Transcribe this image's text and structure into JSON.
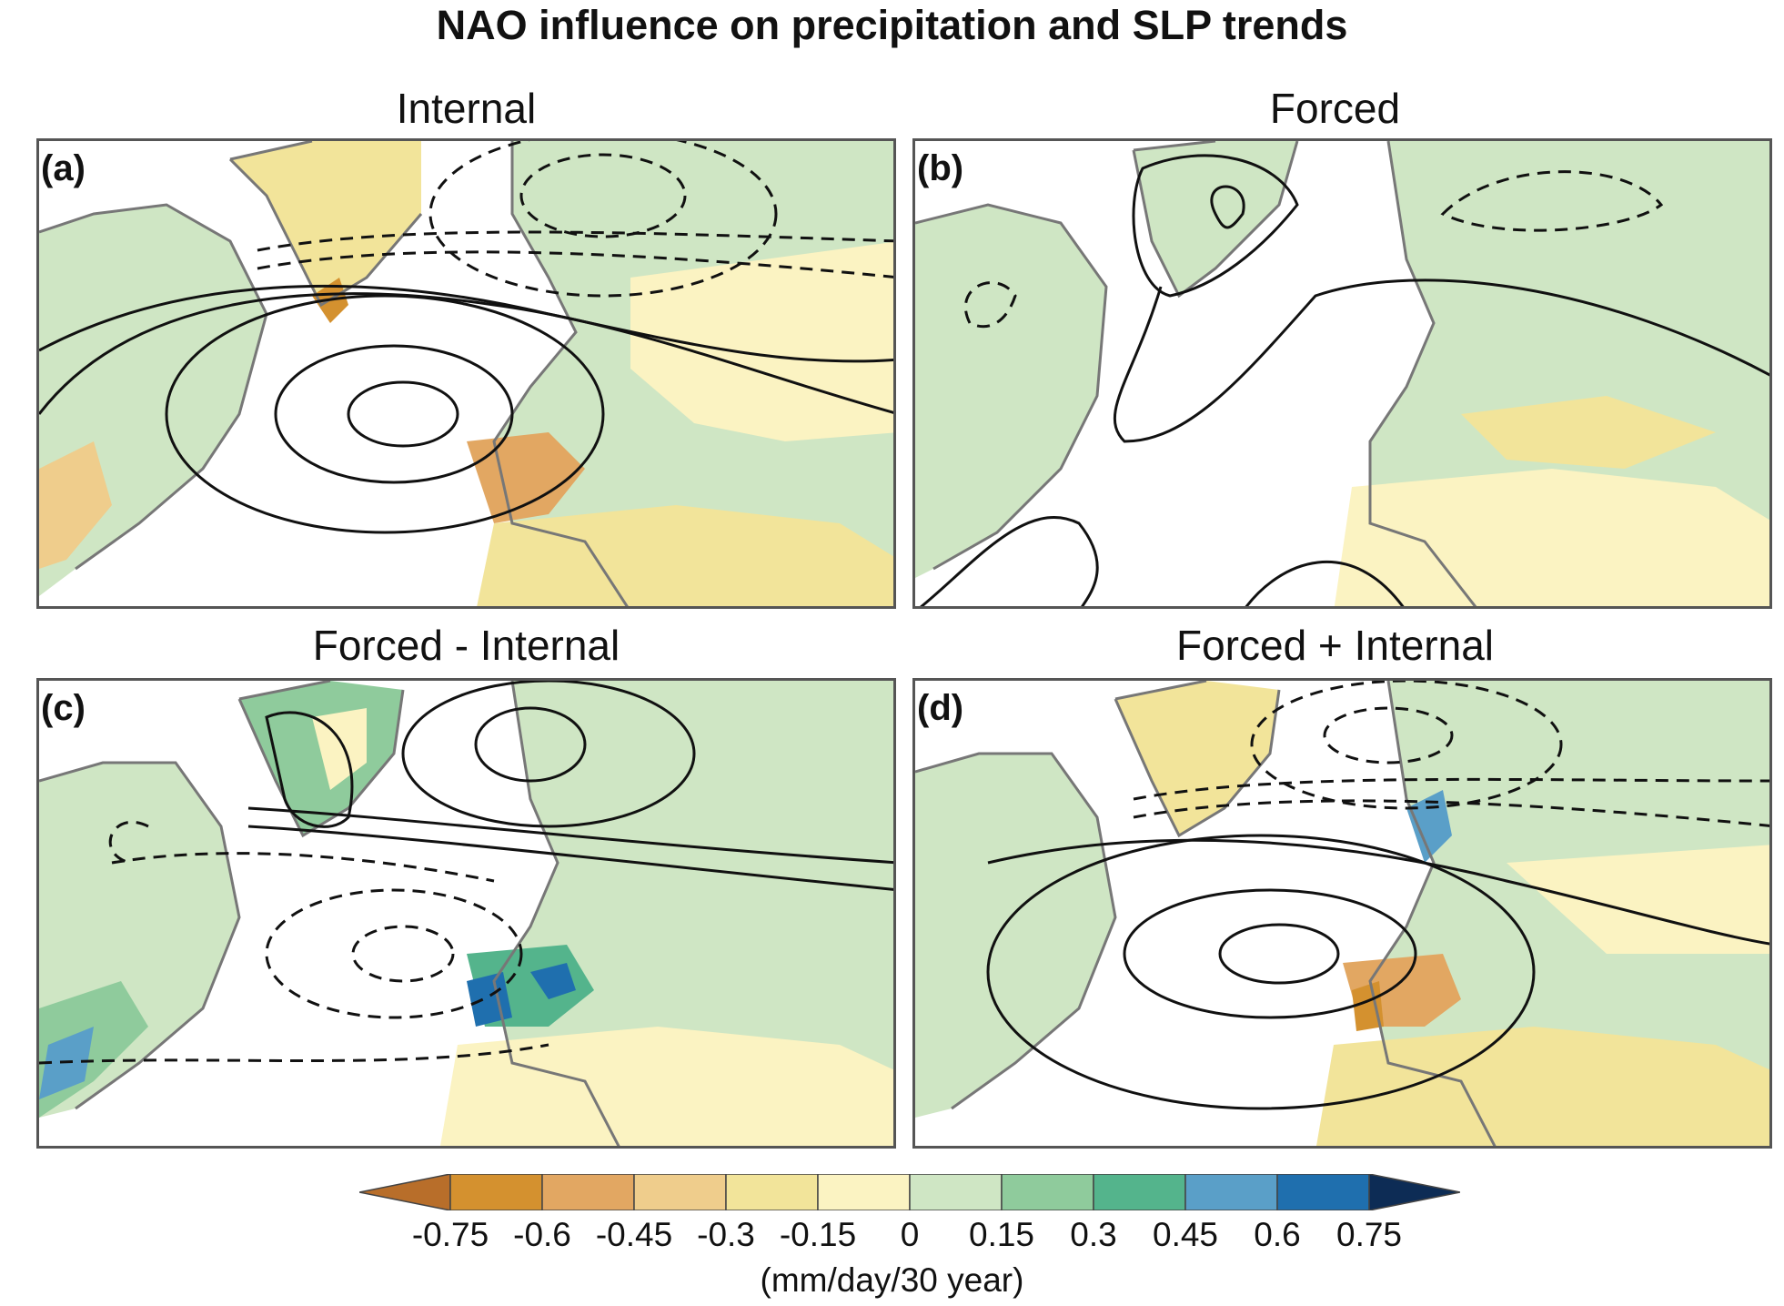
{
  "title": "NAO influence on precipitation and SLP trends",
  "panels": [
    {
      "tag": "(a)",
      "title": "Internal"
    },
    {
      "tag": "(b)",
      "title": "Forced"
    },
    {
      "tag": "(c)",
      "title": "Forced - Internal"
    },
    {
      "tag": "(d)",
      "title": "Forced + Internal"
    }
  ],
  "colorbar": {
    "ticks": [
      "-0.75",
      "-0.6",
      "-0.45",
      "-0.3",
      "-0.15",
      "0",
      "0.15",
      "0.3",
      "0.45",
      "0.6",
      "0.75"
    ],
    "colors": [
      "#b86e2a",
      "#d4912f",
      "#e2a762",
      "#efcd8c",
      "#f2e49a",
      "#fbf3c2",
      "#cfe6c4",
      "#8fcb9c",
      "#54b48c",
      "#5a9fc8",
      "#1f6fae",
      "#0d2c55"
    ],
    "units": "(mm/day/30 year)"
  }
}
